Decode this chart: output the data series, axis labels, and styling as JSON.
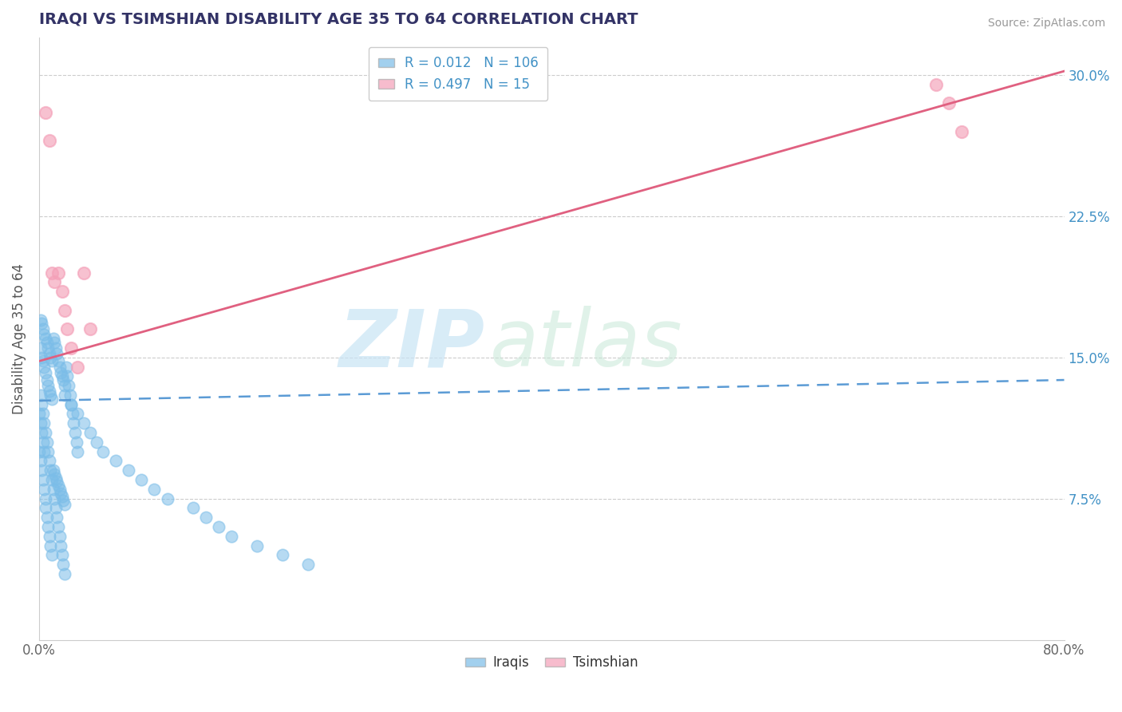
{
  "title": "IRAQI VS TSIMSHIAN DISABILITY AGE 35 TO 64 CORRELATION CHART",
  "source": "Source: ZipAtlas.com",
  "ylabel": "Disability Age 35 to 64",
  "xlim": [
    0.0,
    0.8
  ],
  "ylim": [
    0.0,
    0.32
  ],
  "yticks": [
    0.075,
    0.15,
    0.225,
    0.3
  ],
  "yticklabels": [
    "7.5%",
    "15.0%",
    "22.5%",
    "30.0%"
  ],
  "iraqis_R": 0.012,
  "iraqis_N": 106,
  "tsimshian_R": 0.497,
  "tsimshian_N": 15,
  "iraqis_color": "#7bbde8",
  "tsimshian_color": "#f4a0b8",
  "iraqis_line_color": "#5b9bd5",
  "tsimshian_line_color": "#e06080",
  "iraqis_line_start_y": 0.127,
  "iraqis_line_end_y": 0.138,
  "tsimshian_line_start_y": 0.148,
  "tsimshian_line_end_y": 0.302,
  "iraqis_x": [
    0.001,
    0.002,
    0.003,
    0.004,
    0.005,
    0.006,
    0.007,
    0.008,
    0.009,
    0.01,
    0.011,
    0.012,
    0.013,
    0.014,
    0.015,
    0.016,
    0.017,
    0.018,
    0.019,
    0.02,
    0.021,
    0.022,
    0.023,
    0.024,
    0.025,
    0.026,
    0.027,
    0.028,
    0.029,
    0.03,
    0.001,
    0.002,
    0.003,
    0.004,
    0.005,
    0.006,
    0.007,
    0.008,
    0.009,
    0.01,
    0.011,
    0.012,
    0.013,
    0.014,
    0.015,
    0.016,
    0.017,
    0.018,
    0.019,
    0.02,
    0.001,
    0.002,
    0.003,
    0.004,
    0.005,
    0.006,
    0.007,
    0.008,
    0.009,
    0.01,
    0.011,
    0.012,
    0.013,
    0.014,
    0.015,
    0.016,
    0.017,
    0.018,
    0.019,
    0.02,
    0.0,
    0.0,
    0.001,
    0.001,
    0.002,
    0.002,
    0.003,
    0.003,
    0.004,
    0.004,
    0.005,
    0.005,
    0.006,
    0.007,
    0.008,
    0.009,
    0.01,
    0.02,
    0.025,
    0.03,
    0.035,
    0.04,
    0.045,
    0.05,
    0.06,
    0.07,
    0.08,
    0.09,
    0.1,
    0.12,
    0.13,
    0.14,
    0.15,
    0.17,
    0.19,
    0.21
  ],
  "iraqis_y": [
    0.13,
    0.125,
    0.12,
    0.115,
    0.11,
    0.105,
    0.1,
    0.095,
    0.09,
    0.085,
    0.08,
    0.075,
    0.07,
    0.065,
    0.06,
    0.055,
    0.05,
    0.045,
    0.04,
    0.035,
    0.145,
    0.14,
    0.135,
    0.13,
    0.125,
    0.12,
    0.115,
    0.11,
    0.105,
    0.1,
    0.155,
    0.15,
    0.148,
    0.145,
    0.142,
    0.138,
    0.135,
    0.132,
    0.13,
    0.128,
    0.16,
    0.158,
    0.155,
    0.152,
    0.148,
    0.145,
    0.142,
    0.14,
    0.138,
    0.135,
    0.17,
    0.168,
    0.165,
    0.162,
    0.16,
    0.158,
    0.155,
    0.152,
    0.15,
    0.148,
    0.09,
    0.088,
    0.086,
    0.084,
    0.082,
    0.08,
    0.078,
    0.076,
    0.074,
    0.072,
    0.12,
    0.1,
    0.115,
    0.095,
    0.11,
    0.09,
    0.105,
    0.085,
    0.1,
    0.08,
    0.075,
    0.07,
    0.065,
    0.06,
    0.055,
    0.05,
    0.045,
    0.13,
    0.125,
    0.12,
    0.115,
    0.11,
    0.105,
    0.1,
    0.095,
    0.09,
    0.085,
    0.08,
    0.075,
    0.07,
    0.065,
    0.06,
    0.055,
    0.05,
    0.045,
    0.04
  ],
  "tsimshian_x": [
    0.005,
    0.008,
    0.01,
    0.012,
    0.015,
    0.018,
    0.02,
    0.022,
    0.025,
    0.03,
    0.035,
    0.04,
    0.7,
    0.71,
    0.72
  ],
  "tsimshian_y": [
    0.28,
    0.265,
    0.195,
    0.19,
    0.195,
    0.185,
    0.175,
    0.165,
    0.155,
    0.145,
    0.195,
    0.165,
    0.295,
    0.285,
    0.27
  ]
}
